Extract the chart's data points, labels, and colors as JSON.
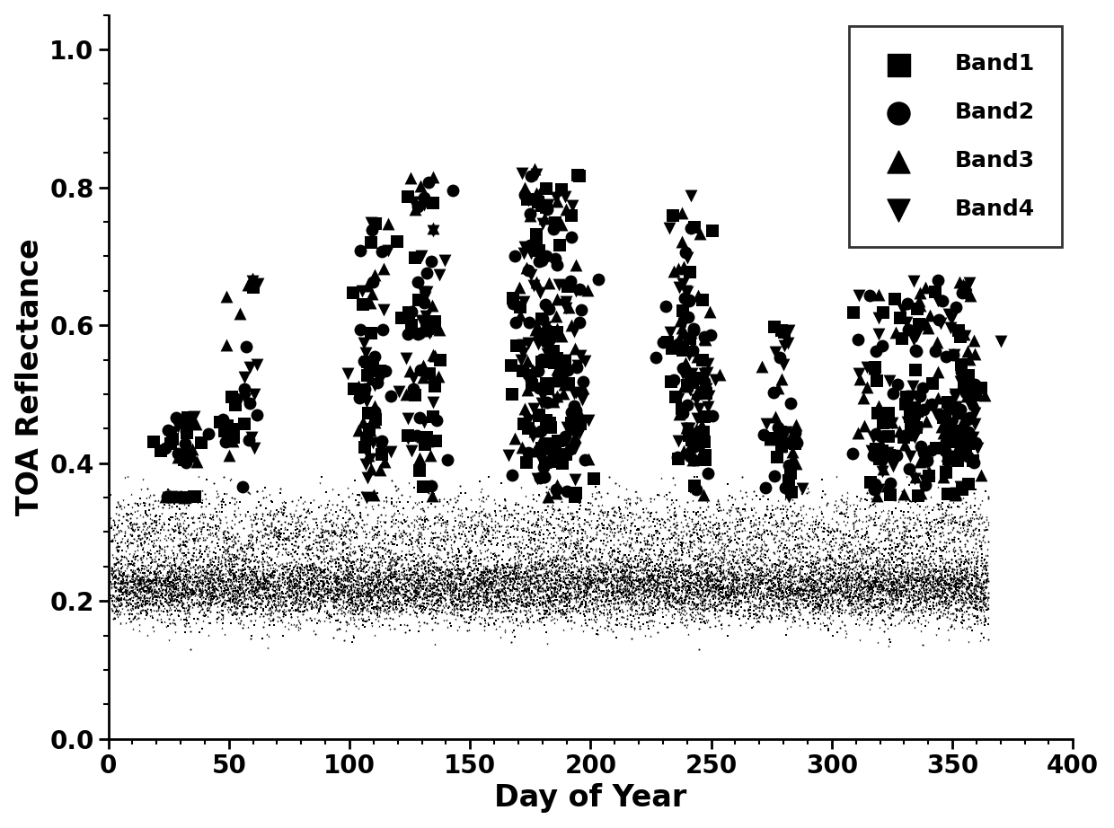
{
  "title": "",
  "xlabel": "Day of Year",
  "ylabel": "TOA Reflectance",
  "xlim": [
    0,
    400
  ],
  "ylim": [
    0.0,
    1.05
  ],
  "xticks": [
    0,
    50,
    100,
    150,
    200,
    250,
    300,
    350,
    400
  ],
  "yticks": [
    0.0,
    0.2,
    0.4,
    0.6,
    0.8,
    1.0
  ],
  "color": "#000000",
  "base_marker_size": 1.5,
  "outlier_marker_size": 10,
  "alpha": 1.0,
  "bands": [
    {
      "name": "Band1",
      "marker": "s"
    },
    {
      "name": "Band2",
      "marker": "o"
    },
    {
      "name": "Band3",
      "marker": "^"
    },
    {
      "name": "Band4",
      "marker": "v"
    }
  ],
  "legend_fontsize": 18,
  "axis_fontsize": 24,
  "tick_fontsize": 20,
  "n_base": 3000,
  "n_outlier": 30,
  "seed": 42
}
